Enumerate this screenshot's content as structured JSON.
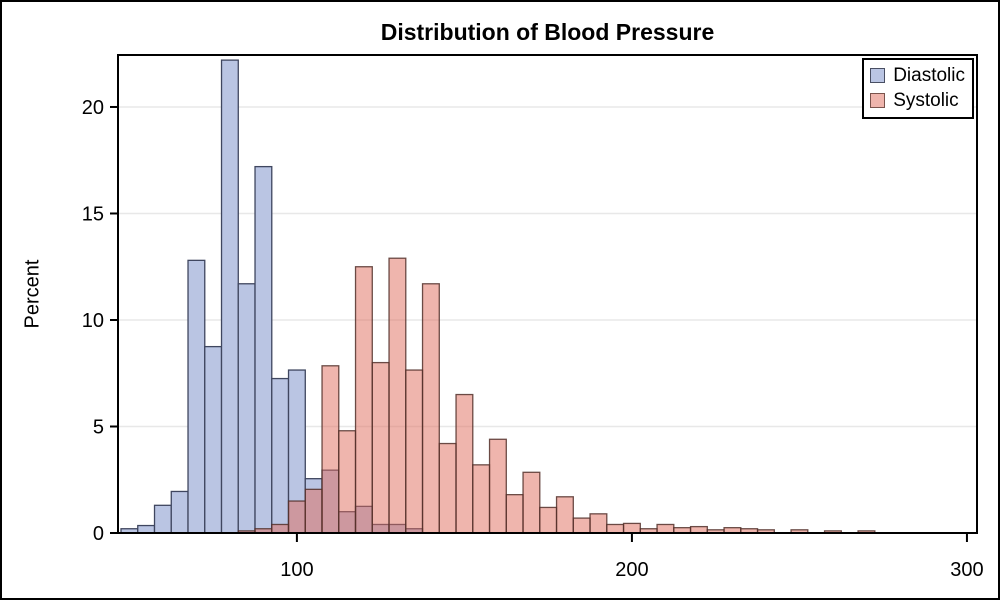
{
  "title": "Distribution of Blood Pressure",
  "axes": {
    "y_label": "Percent",
    "y_ticks": [
      0,
      5,
      10,
      15,
      20
    ],
    "x_ticks": [
      100,
      200,
      300
    ]
  },
  "legend": {
    "entries": [
      {
        "label": "Diastolic",
        "swatch_fill": "#bac5e3",
        "swatch_border": "#494f63"
      },
      {
        "label": "Systolic",
        "swatch_fill": "#efb5ad",
        "swatch_border": "#7a534c"
      }
    ]
  },
  "colors": {
    "background": "#ffffff",
    "frame": "#000000",
    "gridline": "#e8e8e8",
    "diastolic_fill": "#bac5e3",
    "diastolic_stroke": "#3f465f",
    "systolic_fill": "rgba(223,107,91,0.5)",
    "systolic_stroke": "rgba(82,48,42,0.85)"
  },
  "chart_data": {
    "type": "bar",
    "subtype": "overlaid-histogram",
    "title": "Distribution of Blood Pressure",
    "xlabel": "",
    "ylabel": "Percent",
    "bin_width": 5,
    "xlim": [
      46.6,
      303.0
    ],
    "ylim": [
      0,
      22.44
    ],
    "grid": "horizontal",
    "gridlines": [
      5,
      10,
      15,
      20
    ],
    "legend_position": "top-right-inside",
    "series": [
      {
        "name": "Diastolic",
        "midpoints": [
          50,
          55,
          60,
          65,
          70,
          75,
          80,
          85,
          90,
          95,
          100,
          105,
          110,
          115,
          120,
          125,
          130,
          135
        ],
        "percents": [
          0.2,
          0.35,
          1.3,
          1.95,
          12.8,
          8.75,
          22.2,
          11.7,
          17.2,
          7.25,
          7.65,
          2.55,
          2.95,
          1.0,
          1.25,
          0.4,
          0.4,
          0.2
        ]
      },
      {
        "name": "Systolic",
        "midpoints": [
          85,
          90,
          95,
          100,
          105,
          110,
          115,
          120,
          125,
          130,
          135,
          140,
          145,
          150,
          155,
          160,
          165,
          170,
          175,
          180,
          185,
          190,
          195,
          200,
          205,
          210,
          215,
          220,
          225,
          230,
          235,
          240,
          250,
          260,
          270
        ],
        "percents": [
          0.1,
          0.2,
          0.4,
          1.5,
          2.05,
          7.85,
          4.8,
          12.5,
          8.0,
          12.9,
          7.65,
          11.7,
          4.2,
          6.5,
          3.2,
          4.4,
          1.8,
          2.85,
          1.2,
          1.7,
          0.7,
          0.9,
          0.4,
          0.45,
          0.2,
          0.4,
          0.25,
          0.3,
          0.15,
          0.25,
          0.2,
          0.15,
          0.15,
          0.1,
          0.1
        ]
      }
    ]
  }
}
